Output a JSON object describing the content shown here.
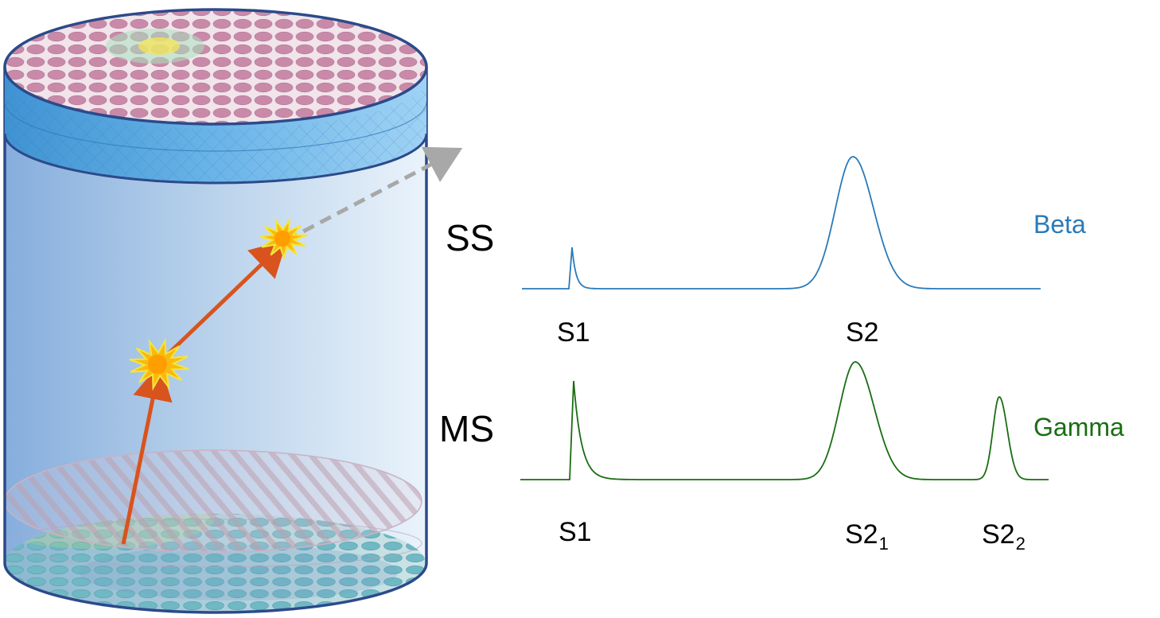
{
  "ss": {
    "label": "SS",
    "type_label": "Beta",
    "color": "#2a7ab9",
    "peaks": [
      {
        "label": "S1",
        "sub": ""
      },
      {
        "label": "S2",
        "sub": ""
      }
    ]
  },
  "ms": {
    "label": "MS",
    "type_label": "Gamma",
    "color": "#1a6d12",
    "peaks": [
      {
        "label": "S1",
        "sub": ""
      },
      {
        "label": "S2",
        "sub": "1"
      },
      {
        "label": "S2",
        "sub": "2"
      }
    ]
  },
  "colors": {
    "track": "#d9531e",
    "scatter_arrow": "#a8a8a8",
    "detector_wall": "#2c4a8a",
    "pmt_top": "#c98aa9",
    "vertex": "#fbb90f"
  }
}
